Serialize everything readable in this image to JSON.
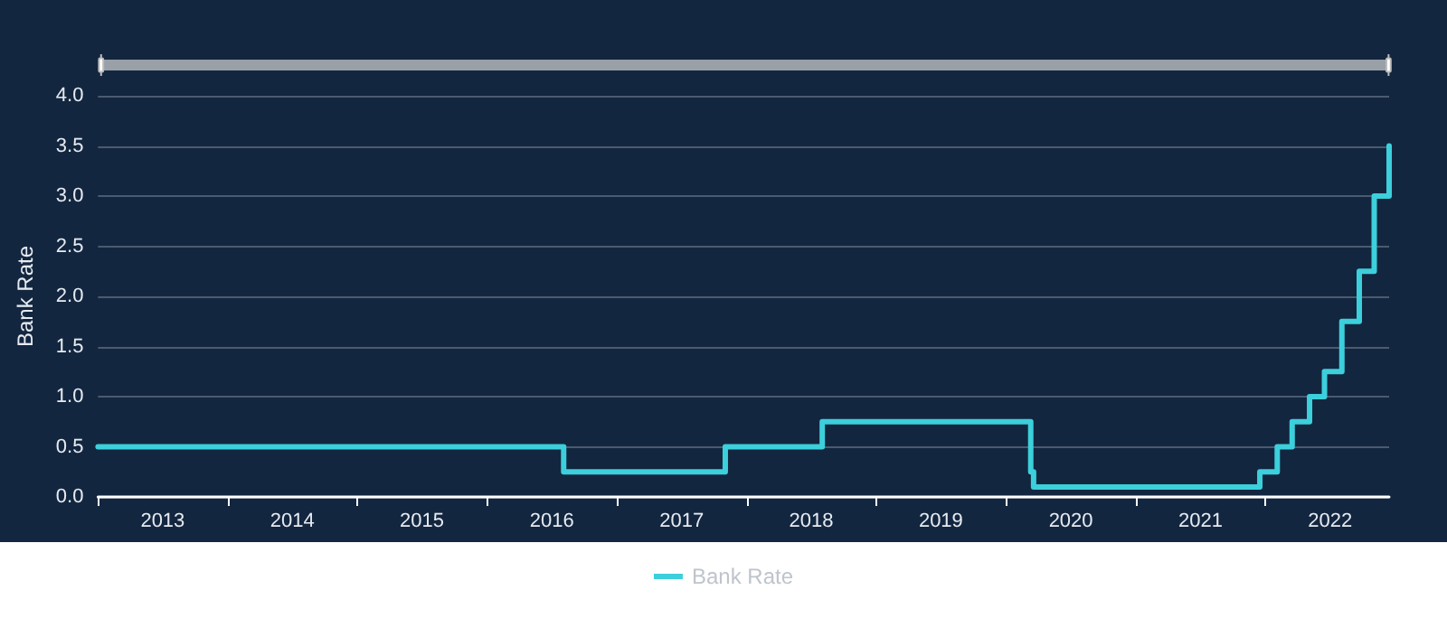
{
  "chart_data": {
    "type": "step",
    "ylabel": "Bank Rate",
    "x": [
      "2013-01-01",
      "2016-08-04",
      "2017-11-02",
      "2018-08-02",
      "2020-03-11",
      "2020-03-19",
      "2021-12-16",
      "2022-02-03",
      "2022-03-17",
      "2022-05-05",
      "2022-06-16",
      "2022-08-04",
      "2022-09-22",
      "2022-11-03",
      "2022-12-15"
    ],
    "series": [
      {
        "name": "Bank Rate",
        "color": "#3ccfdc",
        "values": [
          0.5,
          0.25,
          0.5,
          0.75,
          0.25,
          0.1,
          0.25,
          0.5,
          0.75,
          1.0,
          1.25,
          1.75,
          2.25,
          3.0,
          3.5
        ]
      }
    ],
    "xlim": [
      "2013-01-01",
      "2022-12-15"
    ],
    "xticks": [
      {
        "value": "2013-01-01",
        "label": null
      },
      {
        "value": "2013-07-02",
        "label": "2013"
      },
      {
        "value": "2014-01-01",
        "label": null
      },
      {
        "value": "2014-07-02",
        "label": "2014"
      },
      {
        "value": "2015-01-01",
        "label": null
      },
      {
        "value": "2015-07-02",
        "label": "2015"
      },
      {
        "value": "2016-01-01",
        "label": null
      },
      {
        "value": "2016-07-02",
        "label": "2016"
      },
      {
        "value": "2017-01-01",
        "label": null
      },
      {
        "value": "2017-07-02",
        "label": "2017"
      },
      {
        "value": "2018-01-01",
        "label": null
      },
      {
        "value": "2018-07-02",
        "label": "2018"
      },
      {
        "value": "2019-01-01",
        "label": null
      },
      {
        "value": "2019-07-02",
        "label": "2019"
      },
      {
        "value": "2020-01-01",
        "label": null
      },
      {
        "value": "2020-07-02",
        "label": "2020"
      },
      {
        "value": "2021-01-01",
        "label": null
      },
      {
        "value": "2021-07-02",
        "label": "2021"
      },
      {
        "value": "2022-01-01",
        "label": null
      },
      {
        "value": "2022-07-02",
        "label": "2022"
      }
    ],
    "ylim": [
      0,
      4
    ],
    "yticks": [
      {
        "value": 0,
        "label": "0.0"
      },
      {
        "value": 0.5,
        "label": "0.5"
      },
      {
        "value": 1,
        "label": "1.0"
      },
      {
        "value": 1.5,
        "label": "1.5"
      },
      {
        "value": 2,
        "label": "2.0"
      },
      {
        "value": 2.5,
        "label": "2.5"
      },
      {
        "value": 3,
        "label": "3.0"
      },
      {
        "value": 3.5,
        "label": "3.5"
      },
      {
        "value": 4,
        "label": "4.0"
      }
    ],
    "grid": "y",
    "legend": "bottom",
    "marker": "none",
    "line_style": "solid"
  }
}
